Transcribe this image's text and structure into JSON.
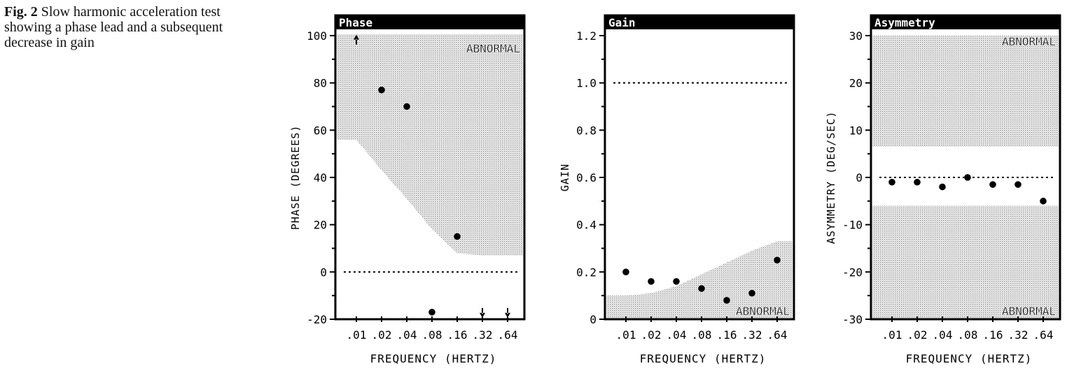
{
  "caption": {
    "label": "Fig. 2",
    "text": "Slow harmonic acceleration test showing a phase lead and a subsequent decrease in gain"
  },
  "colors": {
    "ink": "#000000",
    "shade": "#8a8a8a",
    "paper": "#ffffff"
  },
  "chart_data": [
    {
      "type": "scatter",
      "title": "Phase",
      "xlabel": "FREQUENCY (HERTZ)",
      "ylabel": "PHASE (DEGREES)",
      "categories": [
        ".01",
        ".02",
        ".04",
        ".08",
        ".16",
        ".32",
        ".64"
      ],
      "ylim": [
        -20,
        100
      ],
      "yticks": [
        "100",
        "80",
        "60",
        "40",
        "20",
        "0",
        "-20"
      ],
      "reference_line": 0,
      "abnormal_label": "ABNORMAL",
      "abnormal_region": {
        "boundary": [
          56,
          43,
          31,
          18,
          8,
          7,
          7
        ],
        "above": true
      },
      "points": [
        {
          "x": ".01",
          "y": 98,
          "marker": "arrow-up"
        },
        {
          "x": ".02",
          "y": 77
        },
        {
          "x": ".04",
          "y": 70
        },
        {
          "x": ".08",
          "y": -17
        },
        {
          "x": ".16",
          "y": 15
        },
        {
          "x": ".32",
          "y": -17,
          "marker": "arrow-down"
        },
        {
          "x": ".64",
          "y": -17,
          "marker": "arrow-down"
        }
      ]
    },
    {
      "type": "scatter",
      "title": "Gain",
      "xlabel": "FREQUENCY (HERTZ)",
      "ylabel": "GAIN",
      "categories": [
        ".01",
        ".02",
        ".04",
        ".08",
        ".16",
        ".32",
        ".64"
      ],
      "ylim": [
        0,
        1.2
      ],
      "yticks": [
        "1.2",
        "1.0",
        "0.8",
        "0.6",
        "0.4",
        "0.2",
        "0"
      ],
      "reference_line": 1.0,
      "abnormal_label": "ABNORMAL",
      "abnormal_region": {
        "boundary": [
          0.1,
          0.11,
          0.14,
          0.19,
          0.24,
          0.29,
          0.33
        ],
        "above": false
      },
      "points": [
        {
          "x": ".01",
          "y": 0.2
        },
        {
          "x": ".02",
          "y": 0.16
        },
        {
          "x": ".04",
          "y": 0.16
        },
        {
          "x": ".08",
          "y": 0.13
        },
        {
          "x": ".16",
          "y": 0.08
        },
        {
          "x": ".32",
          "y": 0.11
        },
        {
          "x": ".64",
          "y": 0.25
        }
      ]
    },
    {
      "type": "scatter",
      "title": "Asymmetry",
      "xlabel": "FREQUENCY (HERTZ)",
      "ylabel": "ASYMMETRY (DEG/SEC)",
      "categories": [
        ".01",
        ".02",
        ".04",
        ".08",
        ".16",
        ".32",
        ".64"
      ],
      "ylim": [
        -30,
        30
      ],
      "yticks": [
        "30",
        "20",
        "10",
        "0",
        "-10",
        "-20",
        "-30"
      ],
      "reference_line": 0,
      "abnormal_label": "ABNORMAL",
      "abnormal_bands": [
        [
          6.5,
          30
        ],
        [
          -30,
          -6
        ]
      ],
      "points": [
        {
          "x": ".01",
          "y": -1
        },
        {
          "x": ".02",
          "y": -1
        },
        {
          "x": ".04",
          "y": -2
        },
        {
          "x": ".08",
          "y": 0
        },
        {
          "x": ".16",
          "y": -1.5
        },
        {
          "x": ".32",
          "y": -1.5
        },
        {
          "x": ".64",
          "y": -5
        }
      ]
    }
  ]
}
